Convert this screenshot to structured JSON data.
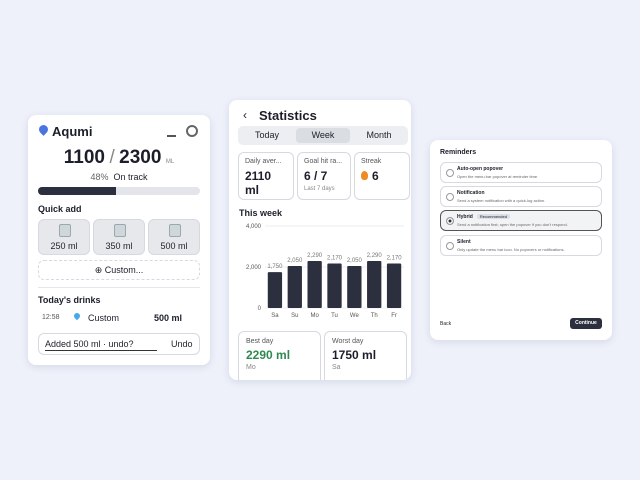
{
  "tracker": {
    "app_name": "Aqumi",
    "consumed": "1100",
    "separator": "/",
    "goal": "2300",
    "unit": "ML",
    "progress": {
      "value": 48,
      "label": "48%"
    },
    "status": "On track",
    "quick_add_title": "Quick add",
    "quick_add": [
      "250 ml",
      "350 ml",
      "500 ml"
    ],
    "custom_button": "Custom...",
    "drinks_title": "Today's drinks",
    "drinks": [
      {
        "time": "12:58",
        "name": "Custom",
        "amount": "500 ml"
      }
    ],
    "toast": {
      "message": "Added 500 ml · undo?",
      "action": "Undo"
    }
  },
  "statistics": {
    "title": "Statistics",
    "tabs": [
      "Today",
      "Week",
      "Month"
    ],
    "selected_tab": 1,
    "stats": [
      {
        "label": "Daily aver...",
        "value": "2110",
        "unit": "ml"
      },
      {
        "label": "Goal hit ra...",
        "value": "6 / 7",
        "note": "Last 7 days"
      },
      {
        "label": "Streak",
        "value": "6"
      }
    ],
    "chart_title": "This week",
    "chart": {
      "type": "bar",
      "categories": [
        "Sa",
        "Su",
        "Mo",
        "Tu",
        "We",
        "Th",
        "Fr"
      ],
      "values": [
        1750,
        2050,
        2290,
        2170,
        2050,
        2290,
        2170
      ],
      "value_labels": [
        "1,750",
        "2,050",
        "2,290",
        "2,170",
        "2,050",
        "2,290",
        "2,170"
      ],
      "color": "#2b2f3e",
      "ylim": [
        0,
        4000
      ],
      "yticks": [
        0,
        {
          "value": 2000,
          "label": "2,000"
        },
        {
          "value": 4000,
          "label": "4,000"
        }
      ],
      "grid": true
    },
    "best": {
      "label": "Best day",
      "value": "2290 ml",
      "day": "Mo"
    },
    "worst": {
      "label": "Worst day",
      "value": "1750 ml",
      "day": "Sa"
    }
  },
  "reminders": {
    "title": "Reminders",
    "options": [
      {
        "title": "Auto-open popover",
        "description": "Open the menu bar popover at reminder time."
      },
      {
        "title": "Notification",
        "description": "Send a system notification with a quick-log action."
      },
      {
        "title": "Hybrid",
        "badge": "Recommended",
        "description": "Send a notification first; open the popover if you don't respond."
      },
      {
        "title": "Silent",
        "description": "Only update the menu bar icon. No popovers or notifications."
      }
    ],
    "selected": 2,
    "back": "Back",
    "continue": "Continue"
  }
}
